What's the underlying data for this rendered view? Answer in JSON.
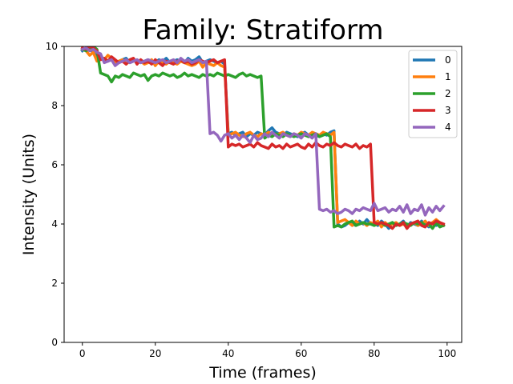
{
  "chart_data": {
    "type": "line",
    "title": "Family: Stratiform",
    "xlabel": "Time (frames)",
    "ylabel": "Intensity (Units)",
    "xlim": [
      -5,
      104
    ],
    "ylim": [
      0,
      10
    ],
    "xticks": [
      0,
      20,
      40,
      60,
      80,
      100
    ],
    "yticks": [
      0,
      2,
      4,
      6,
      8,
      10
    ],
    "grid": false,
    "legend_position": "top-right",
    "x": [
      0,
      1,
      2,
      3,
      4,
      5,
      6,
      7,
      8,
      9,
      10,
      11,
      12,
      13,
      14,
      15,
      16,
      17,
      18,
      19,
      20,
      21,
      22,
      23,
      24,
      25,
      26,
      27,
      28,
      29,
      30,
      31,
      32,
      33,
      34,
      35,
      36,
      37,
      38,
      39,
      40,
      41,
      42,
      43,
      44,
      45,
      46,
      47,
      48,
      49,
      50,
      51,
      52,
      53,
      54,
      55,
      56,
      57,
      58,
      59,
      60,
      61,
      62,
      63,
      64,
      65,
      66,
      67,
      68,
      69,
      70,
      71,
      72,
      73,
      74,
      75,
      76,
      77,
      78,
      79,
      80,
      81,
      82,
      83,
      84,
      85,
      86,
      87,
      88,
      89,
      90,
      91,
      92,
      93,
      94,
      95,
      96,
      97,
      98,
      99
    ],
    "series": [
      {
        "name": "0",
        "color": "#1f77b4",
        "values": [
          9.85,
          9.95,
          9.9,
          9.8,
          9.65,
          9.6,
          9.55,
          9.5,
          9.55,
          9.45,
          9.5,
          9.55,
          9.6,
          9.45,
          9.5,
          9.55,
          9.45,
          9.5,
          9.55,
          9.5,
          9.45,
          9.55,
          9.5,
          9.6,
          9.45,
          9.5,
          9.55,
          9.5,
          9.45,
          9.6,
          9.5,
          9.55,
          9.65,
          9.45,
          9.5,
          9.55,
          9.5,
          9.45,
          9.5,
          9.4,
          7.05,
          7.1,
          7.0,
          7.05,
          7.1,
          6.95,
          7.05,
          7.0,
          7.1,
          7.05,
          7.0,
          7.15,
          7.25,
          7.1,
          7.05,
          7.0,
          7.1,
          7.05,
          7.0,
          6.95,
          7.05,
          7.1,
          7.0,
          7.05,
          7.0,
          6.95,
          7.05,
          7.0,
          7.1,
          7.15,
          4.0,
          3.9,
          3.95,
          4.05,
          4.0,
          3.95,
          4.1,
          4.0,
          4.15,
          4.0,
          4.05,
          3.95,
          4.1,
          4.0,
          3.85,
          4.05,
          3.95,
          4.0,
          4.1,
          3.9,
          4.05,
          4.0,
          3.95,
          4.1,
          4.0,
          3.9,
          4.05,
          3.95,
          4.0,
          3.95
        ]
      },
      {
        "name": "1",
        "color": "#ff7f0e",
        "values": [
          9.9,
          9.85,
          9.7,
          9.8,
          9.5,
          9.6,
          9.55,
          9.7,
          9.6,
          9.45,
          9.5,
          9.55,
          9.4,
          9.5,
          9.55,
          9.45,
          9.5,
          9.4,
          9.45,
          9.55,
          9.35,
          9.5,
          9.45,
          9.4,
          9.5,
          9.45,
          9.4,
          9.5,
          9.45,
          9.4,
          9.35,
          9.4,
          9.5,
          9.3,
          9.45,
          9.4,
          9.35,
          9.45,
          9.35,
          9.3,
          7.0,
          7.05,
          7.1,
          7.0,
          6.95,
          7.05,
          7.1,
          7.0,
          6.95,
          7.05,
          7.0,
          7.1,
          7.05,
          7.0,
          7.05,
          7.1,
          7.0,
          6.95,
          7.05,
          7.0,
          7.1,
          7.05,
          7.0,
          7.1,
          7.05,
          7.0,
          7.1,
          7.05,
          7.0,
          7.1,
          4.05,
          4.1,
          4.15,
          4.05,
          3.95,
          4.1,
          4.0,
          4.05,
          3.95,
          4.05,
          4.0,
          4.1,
          3.9,
          4.05,
          3.95,
          4.0,
          4.05,
          3.95,
          4.0,
          3.9,
          4.0,
          4.05,
          3.95,
          4.0,
          4.1,
          3.95,
          4.05,
          4.15,
          4.05,
          3.95
        ]
      },
      {
        "name": "2",
        "color": "#2ca02c",
        "values": [
          9.9,
          9.85,
          9.95,
          10.0,
          9.9,
          9.1,
          9.05,
          9.0,
          8.8,
          9.0,
          8.95,
          9.05,
          9.0,
          8.95,
          9.1,
          9.05,
          9.0,
          9.05,
          8.85,
          9.0,
          9.05,
          9.0,
          9.1,
          9.05,
          9.0,
          9.05,
          8.95,
          9.0,
          9.1,
          9.0,
          9.05,
          9.0,
          8.95,
          9.05,
          9.0,
          9.05,
          9.0,
          9.1,
          9.05,
          9.0,
          9.05,
          9.0,
          8.95,
          9.05,
          9.1,
          9.0,
          9.05,
          9.0,
          8.95,
          9.0,
          6.9,
          7.0,
          6.95,
          7.05,
          7.0,
          6.95,
          7.05,
          7.0,
          6.95,
          7.0,
          7.05,
          7.0,
          6.95,
          7.0,
          7.05,
          6.95,
          7.0,
          7.05,
          6.95,
          3.9,
          3.95,
          3.9,
          4.0,
          4.05,
          4.1,
          3.95,
          4.0,
          4.05,
          4.0,
          4.0,
          3.95,
          4.0,
          4.05,
          3.95,
          4.0,
          4.05,
          3.95,
          4.0,
          4.05,
          4.0,
          3.95,
          4.05,
          4.0,
          4.05,
          3.95,
          4.0,
          3.85,
          4.05,
          3.9,
          3.95
        ]
      },
      {
        "name": "3",
        "color": "#d62728",
        "values": [
          9.95,
          9.9,
          10.0,
          9.95,
          9.85,
          9.55,
          9.6,
          9.5,
          9.65,
          9.55,
          9.45,
          9.5,
          9.4,
          9.55,
          9.6,
          9.4,
          9.55,
          9.45,
          9.5,
          9.4,
          9.55,
          9.45,
          9.35,
          9.5,
          9.45,
          9.4,
          9.5,
          9.55,
          9.45,
          9.5,
          9.4,
          9.45,
          9.55,
          9.5,
          9.45,
          9.5,
          9.55,
          9.45,
          9.5,
          9.55,
          6.6,
          6.7,
          6.65,
          6.7,
          6.6,
          6.65,
          6.7,
          6.6,
          6.75,
          6.65,
          6.6,
          6.55,
          6.7,
          6.6,
          6.65,
          6.55,
          6.7,
          6.6,
          6.65,
          6.7,
          6.6,
          6.55,
          6.7,
          6.6,
          6.75,
          6.65,
          6.6,
          6.7,
          6.65,
          6.75,
          6.65,
          6.6,
          6.7,
          6.65,
          6.6,
          6.7,
          6.55,
          6.65,
          6.6,
          6.7,
          4.05,
          4.0,
          4.05,
          4.0,
          3.95,
          3.85,
          4.0,
          3.95,
          4.05,
          3.85,
          4.0,
          4.05,
          4.1,
          3.95,
          3.9,
          4.05,
          4.0,
          4.1,
          4.05,
          4.0
        ]
      },
      {
        "name": "4",
        "color": "#9467bd",
        "values": [
          9.9,
          9.95,
          9.85,
          9.9,
          9.8,
          9.75,
          9.45,
          9.5,
          9.55,
          9.35,
          9.45,
          9.5,
          9.55,
          9.45,
          9.5,
          9.55,
          9.45,
          9.5,
          9.55,
          9.5,
          9.45,
          9.5,
          9.55,
          9.45,
          9.5,
          9.55,
          9.45,
          9.6,
          9.5,
          9.55,
          9.45,
          9.5,
          9.55,
          9.45,
          9.5,
          7.05,
          7.1,
          7.0,
          6.8,
          7.0,
          7.05,
          6.9,
          7.0,
          6.85,
          7.0,
          6.9,
          6.75,
          7.0,
          6.85,
          6.9,
          7.05,
          6.95,
          7.1,
          7.0,
          6.9,
          7.05,
          7.0,
          6.95,
          7.05,
          7.0,
          6.9,
          7.05,
          7.0,
          6.9,
          7.05,
          4.5,
          4.45,
          4.5,
          4.4,
          4.45,
          4.35,
          4.4,
          4.5,
          4.45,
          4.35,
          4.5,
          4.45,
          4.55,
          4.5,
          4.45,
          4.7,
          4.45,
          4.5,
          4.55,
          4.4,
          4.5,
          4.45,
          4.6,
          4.4,
          4.65,
          4.35,
          4.5,
          4.45,
          4.65,
          4.3,
          4.55,
          4.4,
          4.6,
          4.45,
          4.6
        ]
      }
    ]
  }
}
